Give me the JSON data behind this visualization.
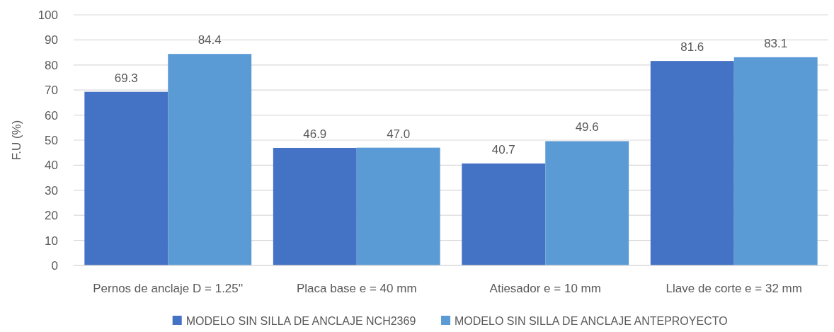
{
  "chart_data": {
    "type": "bar",
    "ylabel": "F.U (%)",
    "categories": [
      "Pernos de anclaje D = 1.25''",
      "Placa base e = 40 mm",
      "Atiesador e = 10 mm",
      "Llave de corte e = 32 mm"
    ],
    "series": [
      {
        "name": "MODELO SIN SILLA DE ANCLAJE NCH2369",
        "color": "#4472c4",
        "values": [
          69.3,
          46.9,
          40.7,
          81.6
        ],
        "value_labels": [
          "69.3",
          "46.9",
          "40.7",
          "81.6"
        ]
      },
      {
        "name": "MODELO SIN SILLA DE ANCLAJE ANTEPROYECTO",
        "color": "#5b9bd5",
        "values": [
          84.4,
          47.0,
          49.6,
          83.1
        ],
        "value_labels": [
          "84.4",
          "47.0",
          "49.6",
          "83.1"
        ]
      }
    ],
    "ylim": [
      0,
      100
    ],
    "yticks": [
      0,
      10,
      20,
      30,
      40,
      50,
      60,
      70,
      80,
      90,
      100
    ],
    "grid": "y",
    "legend": "bottom"
  }
}
